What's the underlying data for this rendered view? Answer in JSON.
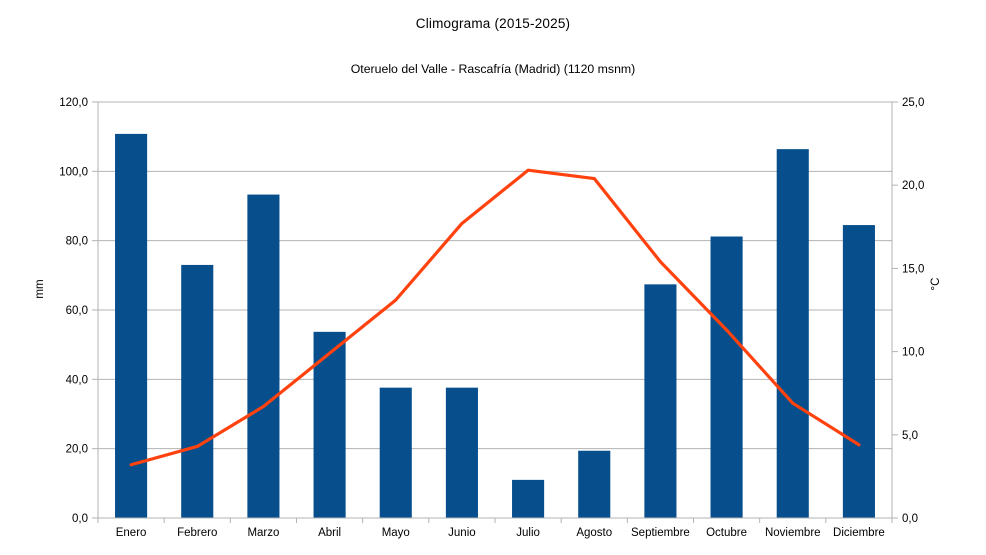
{
  "page": {
    "background": "#ffffff"
  },
  "chart": {
    "title": "Climograma (2015-2025)",
    "subtitle": "Oteruelo del Valle - Rascafría (Madrid) (1120 msnm)"
  },
  "chart_data": {
    "type": "combo_bar_line",
    "title": "Climograma (2015-2025)",
    "subtitle": "Oteruelo del Valle - Rascafría (Madrid) (1120 msnm)",
    "categories": [
      "Enero",
      "Febrero",
      "Marzo",
      "Abril",
      "Mayo",
      "Junio",
      "Julio",
      "Agosto",
      "Septiembre",
      "Octubre",
      "Noviembre",
      "Diciembre"
    ],
    "series": [
      {
        "name": "mm",
        "type": "bar",
        "axis": "left",
        "color": "#064e8c",
        "values": [
          110.8,
          73.0,
          93.3,
          53.7,
          37.6,
          37.6,
          11.0,
          19.4,
          67.4,
          81.2,
          106.4,
          84.5
        ]
      },
      {
        "name": "°C",
        "type": "line",
        "axis": "right",
        "color": "#ff420e",
        "values": [
          3.2,
          4.3,
          6.7,
          9.9,
          13.1,
          17.7,
          20.9,
          20.4,
          15.4,
          11.3,
          6.9,
          4.4
        ]
      }
    ],
    "ylabel_left": "mm",
    "ylabel_right": "°C",
    "y_left": {
      "min": 0,
      "max": 120,
      "step": 20,
      "tick_labels": [
        "0,0",
        "20,0",
        "40,0",
        "60,0",
        "80,0",
        "100,0",
        "120,0"
      ]
    },
    "y_right": {
      "min": 0,
      "max": 25,
      "step": 5,
      "tick_labels": [
        "0,0",
        "5,0",
        "10,0",
        "15,0",
        "20,0",
        "25,0"
      ]
    },
    "grid": "horizontal-only",
    "legend": "none",
    "grid_color": "#b3b3b3",
    "axis_color": "#b3b3b3",
    "text_color": "#000000"
  }
}
